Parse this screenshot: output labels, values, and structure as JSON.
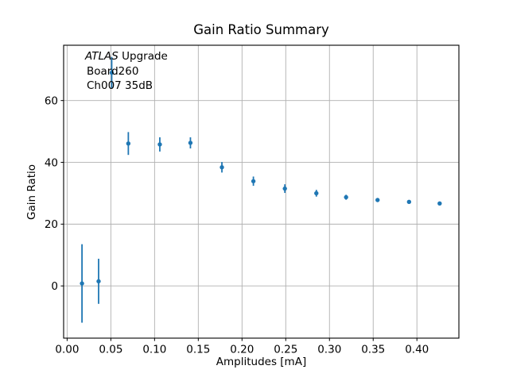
{
  "figure": {
    "title": "Gain Ratio Summary",
    "annotation": {
      "line1_italic": "ATLAS",
      "line1_rest": " Upgrade",
      "line2": "Board260",
      "line3": "Ch007 35dB"
    },
    "colors": {
      "marker": "#1f77b4",
      "grid": "#b0b0b0",
      "spine": "#000000",
      "background": "#ffffff",
      "text": "#000000"
    }
  },
  "chart_data": {
    "type": "scatter",
    "title": "Gain Ratio Summary",
    "xlabel": "Amplitudes [mA]",
    "ylabel": "Gain Ratio",
    "annotation_lines": [
      "ATLAS Upgrade",
      "Board260",
      "Ch007 35dB"
    ],
    "x": [
      0.017,
      0.036,
      0.051,
      0.07,
      0.106,
      0.141,
      0.177,
      0.213,
      0.249,
      0.285,
      0.319,
      0.355,
      0.391,
      0.426
    ],
    "y": [
      0.8,
      1.5,
      69.0,
      46.1,
      45.8,
      46.3,
      38.4,
      33.9,
      31.5,
      30.0,
      28.7,
      27.8,
      27.2,
      26.7
    ],
    "yerr": [
      12.7,
      7.3,
      5.1,
      3.7,
      2.3,
      1.8,
      1.7,
      1.5,
      1.4,
      1.1,
      0.8,
      0.5,
      0.5,
      0.4
    ],
    "xticks": [
      0.0,
      0.05,
      0.1,
      0.15,
      0.2,
      0.25,
      0.3,
      0.35,
      0.4
    ],
    "xtick_labels": [
      "0.00",
      "0.05",
      "0.10",
      "0.15",
      "0.20",
      "0.25",
      "0.30",
      "0.35",
      "0.40"
    ],
    "yticks": [
      0,
      20,
      40,
      60
    ],
    "ytick_labels": [
      "0",
      "20",
      "40",
      "60"
    ],
    "xlim": [
      -0.004,
      0.448
    ],
    "ylim": [
      -16.9,
      77.9
    ],
    "grid": true,
    "legend": "none",
    "marker": "o",
    "marker_color": "#1f77b4"
  }
}
